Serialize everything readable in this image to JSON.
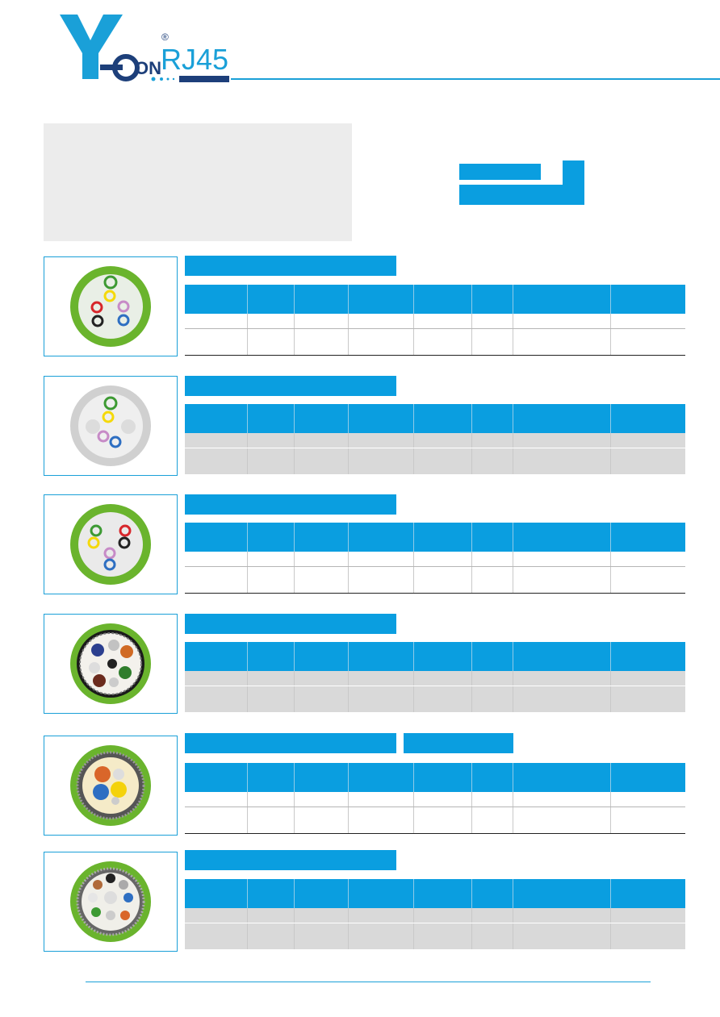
{
  "brand": {
    "logo_letters": "Y",
    "logo_text": "ON",
    "series": "RJ45",
    "registered": "®",
    "sub": "SERIES",
    "primary_color": "#0a9ee0",
    "accent_color": "#1d4c8c"
  },
  "sections": [
    {
      "style": "white",
      "jacket_color": "#6ab42d",
      "image": "cable-cross-section-4pair-green"
    },
    {
      "style": "shaded",
      "jacket_color": "#cfcfcf",
      "image": "cable-cross-section-2pair-gray"
    },
    {
      "style": "white",
      "jacket_color": "#6ab42d",
      "image": "cable-cross-section-4pair-green"
    },
    {
      "style": "shaded",
      "jacket_color": "#6ab42d",
      "image": "cable-cross-section-shielded-green"
    },
    {
      "style": "white",
      "jacket_color": "#6ab42d",
      "image": "cable-cross-section-hybrid-green"
    },
    {
      "style": "shaded",
      "jacket_color": "#6ab42d",
      "image": "cable-cross-section-multi-green"
    }
  ]
}
